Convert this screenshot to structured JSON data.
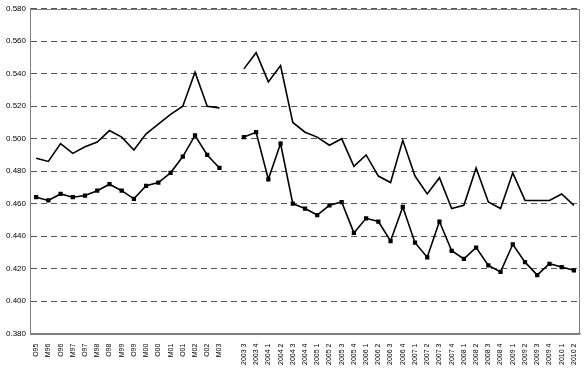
{
  "chart_data": {
    "type": "line",
    "categories": [
      "O95",
      "M96",
      "O96",
      "M97",
      "O97",
      "M98",
      "O98",
      "M99",
      "O99",
      "M00",
      "O00",
      "M01",
      "O01",
      "M02",
      "O02",
      "M03",
      null,
      "2003 3",
      "2003 4",
      "2004 1",
      "2004 2",
      "2004 3",
      "2004 4",
      "2005 1",
      "2005 2",
      "2005 3",
      "2005 4",
      "2006 1",
      "2006 2",
      "2006 3",
      "2006 4",
      "2007 1",
      "2007 2",
      "2007 3",
      "2007 4",
      "2008 1",
      "2008 2",
      "2008 3",
      "2008 4",
      "2009 1",
      "2009 2",
      "2009 3",
      "2009 4",
      "2010 1",
      "2010 2"
    ],
    "series": [
      {
        "color": "#000000",
        "marker": "none",
        "values": [
          0.488,
          0.486,
          0.497,
          0.491,
          0.495,
          0.498,
          0.505,
          0.501,
          0.493,
          0.503,
          0.509,
          0.515,
          0.52,
          0.541,
          0.52,
          0.519,
          null,
          0.543,
          0.553,
          0.535,
          0.545,
          0.51,
          0.504,
          0.501,
          0.496,
          0.5,
          0.483,
          0.49,
          0.477,
          0.473,
          0.499,
          0.477,
          0.466,
          0.476,
          0.457,
          0.459,
          0.482,
          0.461,
          0.457,
          0.479,
          0.462,
          0.462,
          0.462,
          0.466,
          0.459
        ]
      },
      {
        "color": "#000000",
        "marker": "square",
        "values": [
          0.464,
          0.462,
          0.466,
          0.464,
          0.465,
          0.468,
          0.472,
          0.468,
          0.463,
          0.471,
          0.473,
          0.479,
          0.489,
          0.502,
          0.49,
          0.482,
          null,
          0.501,
          0.504,
          0.475,
          0.497,
          0.46,
          0.457,
          0.453,
          0.459,
          0.461,
          0.442,
          0.451,
          0.449,
          0.437,
          0.458,
          0.436,
          0.427,
          0.449,
          0.431,
          0.426,
          0.433,
          0.422,
          0.418,
          0.435,
          0.424,
          0.416,
          0.423,
          0.421,
          0.419
        ]
      }
    ],
    "ylim": [
      0.38,
      0.58
    ],
    "yticks": [
      {
        "value": 0.38,
        "label": "0.380"
      },
      {
        "value": 0.4,
        "label": "0.400"
      },
      {
        "value": 0.42,
        "label": "0.420"
      },
      {
        "value": 0.44,
        "label": "0.440"
      },
      {
        "value": 0.46,
        "label": "0.460"
      },
      {
        "value": 0.48,
        "label": "0.480"
      },
      {
        "value": 0.5,
        "label": "0.500"
      },
      {
        "value": 0.52,
        "label": "0.520"
      },
      {
        "value": 0.54,
        "label": "0.540"
      },
      {
        "value": 0.56,
        "label": "0.560"
      },
      {
        "value": 0.58,
        "label": "0.580"
      }
    ],
    "grid": true
  }
}
